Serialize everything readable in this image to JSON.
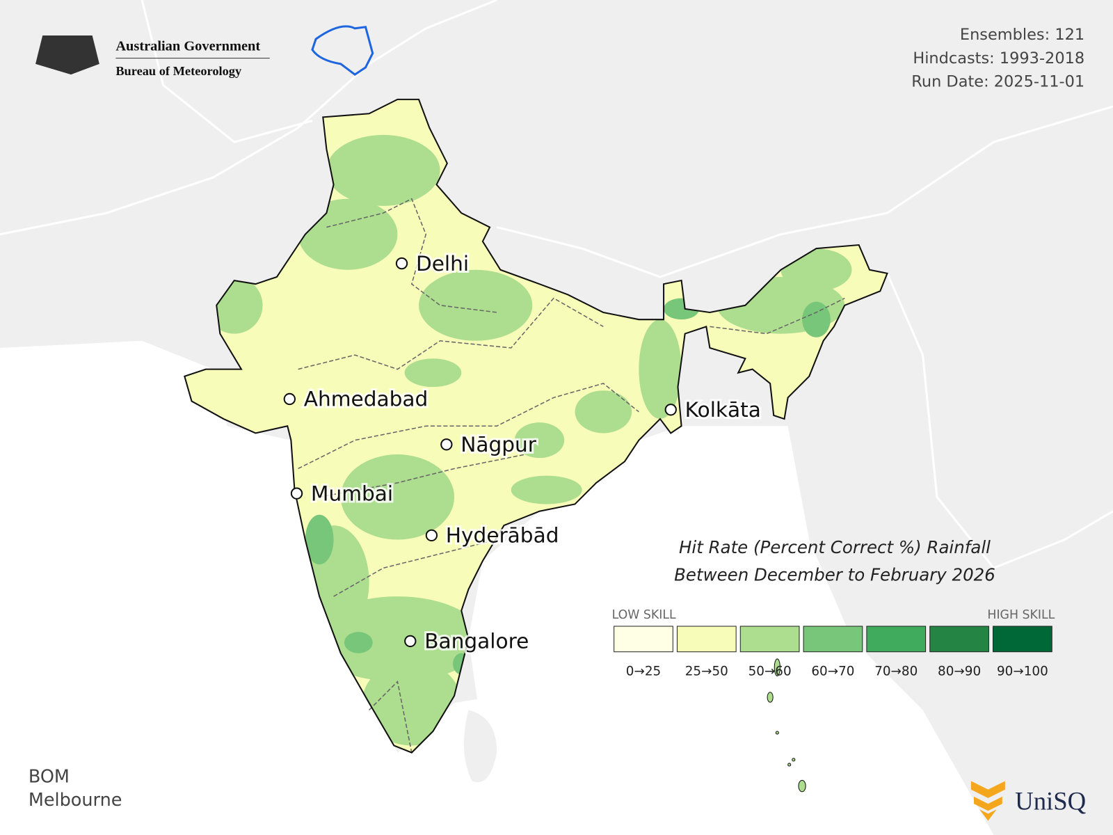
{
  "header": {
    "line1": "Australian Government",
    "line2": "Bureau of Meteorology"
  },
  "info": [
    "Ensembles: 121",
    "Hindcasts: 1993-2018",
    "Run Date: 2025-11-01"
  ],
  "title": [
    "Hit Rate (Percent Correct %) Rainfall",
    "Between December to February 2026"
  ],
  "legend": {
    "low": "LOW SKILL",
    "high": "HIGH SKILL",
    "classes": [
      {
        "label": "0→25",
        "color": "#ffffe5"
      },
      {
        "label": "25→50",
        "color": "#f7fcb9"
      },
      {
        "label": "50→60",
        "color": "#addd8e"
      },
      {
        "label": "60→70",
        "color": "#78c679"
      },
      {
        "label": "70→80",
        "color": "#41ab5d"
      },
      {
        "label": "80→90",
        "color": "#238443"
      },
      {
        "label": "90→100",
        "color": "#006837"
      }
    ]
  },
  "cities": [
    "Delhi",
    "Ahmedabad",
    "Kolkāta",
    "Nāgpur",
    "Mumbai",
    "Hyderābād",
    "Bangalore"
  ],
  "footer": [
    "BOM",
    "Melbourne"
  ],
  "logo": "UniSQ"
}
